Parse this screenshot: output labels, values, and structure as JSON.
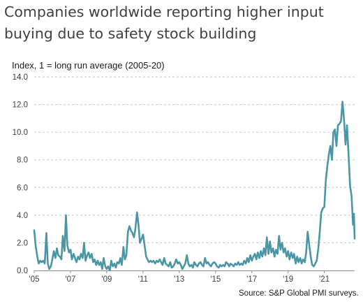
{
  "chart_data": {
    "type": "line",
    "title": "Companies worldwide reporting higher input buying due to safety stock building",
    "ylabel": "Index, 1 = long run average (2005-20)",
    "xlabel": "",
    "source": "Source: S&P Global PMI surveys.",
    "ylim": [
      0,
      14
    ],
    "yticks": [
      "0.0",
      "2.0",
      "4.0",
      "6.0",
      "8.0",
      "10.0",
      "12.0",
      "14.0"
    ],
    "xlim": [
      2005,
      2022.67
    ],
    "xticks": [
      {
        "x": 2005,
        "label": "'05"
      },
      {
        "x": 2007,
        "label": "'07"
      },
      {
        "x": 2009,
        "label": "'09"
      },
      {
        "x": 2011,
        "label": "'11"
      },
      {
        "x": 2013,
        "label": "'13"
      },
      {
        "x": 2015,
        "label": "'15"
      },
      {
        "x": 2017,
        "label": "'17"
      },
      {
        "x": 2019,
        "label": "'19"
      },
      {
        "x": 2021,
        "label": "'21"
      }
    ],
    "grid": true,
    "line_color": "#4a96a6",
    "series": [
      {
        "points": [
          [
            2005.0,
            2.9
          ],
          [
            2005.08,
            1.8
          ],
          [
            2005.17,
            1.0
          ],
          [
            2005.25,
            0.5
          ],
          [
            2005.33,
            0.7
          ],
          [
            2005.42,
            0.6
          ],
          [
            2005.5,
            0.7
          ],
          [
            2005.58,
            0.5
          ],
          [
            2005.67,
            2.7
          ],
          [
            2005.75,
            0.5
          ],
          [
            2005.83,
            0.1
          ],
          [
            2005.92,
            0.3
          ],
          [
            2006.0,
            0.8
          ],
          [
            2006.08,
            1.4
          ],
          [
            2006.17,
            0.9
          ],
          [
            2006.25,
            1.6
          ],
          [
            2006.33,
            1.1
          ],
          [
            2006.42,
            1.0
          ],
          [
            2006.5,
            0.8
          ],
          [
            2006.58,
            2.5
          ],
          [
            2006.67,
            1.4
          ],
          [
            2006.75,
            4.0
          ],
          [
            2006.83,
            1.8
          ],
          [
            2006.92,
            1.3
          ],
          [
            2007.0,
            1.5
          ],
          [
            2007.08,
            0.8
          ],
          [
            2007.17,
            1.2
          ],
          [
            2007.25,
            0.9
          ],
          [
            2007.33,
            0.6
          ],
          [
            2007.42,
            1.0
          ],
          [
            2007.5,
            0.8
          ],
          [
            2007.58,
            1.2
          ],
          [
            2007.67,
            0.9
          ],
          [
            2007.75,
            2.0
          ],
          [
            2007.83,
            0.7
          ],
          [
            2007.92,
            1.1
          ],
          [
            2008.0,
            1.3
          ],
          [
            2008.08,
            0.9
          ],
          [
            2008.17,
            1.2
          ],
          [
            2008.25,
            0.6
          ],
          [
            2008.33,
            0.8
          ],
          [
            2008.42,
            0.4
          ],
          [
            2008.5,
            0.7
          ],
          [
            2008.58,
            0.4
          ],
          [
            2008.67,
            0.6
          ],
          [
            2008.75,
            0.1
          ],
          [
            2008.83,
            0.9
          ],
          [
            2008.92,
            0.3
          ],
          [
            2009.0,
            0.1
          ],
          [
            2009.08,
            0.3
          ],
          [
            2009.17,
            0.0
          ],
          [
            2009.25,
            0.7
          ],
          [
            2009.33,
            0.3
          ],
          [
            2009.42,
            0.5
          ],
          [
            2009.5,
            0.2
          ],
          [
            2009.58,
            0.6
          ],
          [
            2009.67,
            0.5
          ],
          [
            2009.75,
            0.9
          ],
          [
            2009.83,
            0.4
          ],
          [
            2009.92,
            1.7
          ],
          [
            2010.0,
            0.8
          ],
          [
            2010.08,
            1.1
          ],
          [
            2010.17,
            2.8
          ],
          [
            2010.25,
            3.2
          ],
          [
            2010.33,
            2.9
          ],
          [
            2010.42,
            2.7
          ],
          [
            2010.5,
            2.4
          ],
          [
            2010.58,
            3.0
          ],
          [
            2010.67,
            4.2
          ],
          [
            2010.75,
            3.3
          ],
          [
            2010.83,
            2.0
          ],
          [
            2010.92,
            2.3
          ],
          [
            2011.0,
            2.6
          ],
          [
            2011.08,
            1.9
          ],
          [
            2011.17,
            1.0
          ],
          [
            2011.25,
            0.8
          ],
          [
            2011.33,
            0.6
          ],
          [
            2011.42,
            0.7
          ],
          [
            2011.5,
            0.6
          ],
          [
            2011.58,
            0.7
          ],
          [
            2011.67,
            0.5
          ],
          [
            2011.75,
            0.7
          ],
          [
            2011.83,
            0.6
          ],
          [
            2011.92,
            0.8
          ],
          [
            2012.0,
            0.6
          ],
          [
            2012.08,
            0.4
          ],
          [
            2012.17,
            0.9
          ],
          [
            2012.25,
            0.5
          ],
          [
            2012.33,
            0.4
          ],
          [
            2012.42,
            0.3
          ],
          [
            2012.5,
            0.6
          ],
          [
            2012.58,
            0.2
          ],
          [
            2012.67,
            0.3
          ],
          [
            2012.75,
            0.5
          ],
          [
            2012.83,
            0.8
          ],
          [
            2012.92,
            0.5
          ],
          [
            2013.0,
            0.6
          ],
          [
            2013.08,
            0.4
          ],
          [
            2013.17,
            0.1
          ],
          [
            2013.25,
            0.3
          ],
          [
            2013.33,
            0.5
          ],
          [
            2013.42,
            1.1
          ],
          [
            2013.5,
            0.5
          ],
          [
            2013.58,
            0.3
          ],
          [
            2013.67,
            0.4
          ],
          [
            2013.75,
            0.2
          ],
          [
            2013.83,
            0.6
          ],
          [
            2013.92,
            0.4
          ],
          [
            2014.0,
            0.3
          ],
          [
            2014.08,
            0.5
          ],
          [
            2014.17,
            0.6
          ],
          [
            2014.25,
            0.4
          ],
          [
            2014.33,
            0.3
          ],
          [
            2014.42,
            0.9
          ],
          [
            2014.5,
            0.5
          ],
          [
            2014.58,
            0.6
          ],
          [
            2014.67,
            0.4
          ],
          [
            2014.75,
            0.3
          ],
          [
            2014.83,
            0.5
          ],
          [
            2014.92,
            0.6
          ],
          [
            2015.0,
            0.5
          ],
          [
            2015.08,
            0.3
          ],
          [
            2015.17,
            0.2
          ],
          [
            2015.25,
            0.4
          ],
          [
            2015.33,
            0.3
          ],
          [
            2015.42,
            0.4
          ],
          [
            2015.5,
            0.3
          ],
          [
            2015.58,
            0.6
          ],
          [
            2015.67,
            0.5
          ],
          [
            2015.75,
            0.3
          ],
          [
            2015.83,
            0.5
          ],
          [
            2015.92,
            0.4
          ],
          [
            2016.0,
            0.3
          ],
          [
            2016.08,
            0.5
          ],
          [
            2016.17,
            0.4
          ],
          [
            2016.25,
            0.6
          ],
          [
            2016.33,
            0.4
          ],
          [
            2016.42,
            0.5
          ],
          [
            2016.5,
            0.4
          ],
          [
            2016.58,
            0.7
          ],
          [
            2016.67,
            0.5
          ],
          [
            2016.75,
            0.9
          ],
          [
            2016.83,
            0.6
          ],
          [
            2016.92,
            1.1
          ],
          [
            2017.0,
            0.7
          ],
          [
            2017.08,
            1.0
          ],
          [
            2017.17,
            1.2
          ],
          [
            2017.25,
            0.8
          ],
          [
            2017.33,
            1.3
          ],
          [
            2017.42,
            0.9
          ],
          [
            2017.5,
            1.4
          ],
          [
            2017.58,
            1.0
          ],
          [
            2017.67,
            1.6
          ],
          [
            2017.75,
            1.1
          ],
          [
            2017.83,
            2.4
          ],
          [
            2017.92,
            1.2
          ],
          [
            2018.0,
            2.1
          ],
          [
            2018.08,
            1.3
          ],
          [
            2018.17,
            1.6
          ],
          [
            2018.25,
            1.0
          ],
          [
            2018.33,
            1.5
          ],
          [
            2018.42,
            1.2
          ],
          [
            2018.5,
            2.5
          ],
          [
            2018.58,
            1.5
          ],
          [
            2018.67,
            2.0
          ],
          [
            2018.75,
            1.3
          ],
          [
            2018.83,
            1.6
          ],
          [
            2018.92,
            1.0
          ],
          [
            2019.0,
            1.4
          ],
          [
            2019.08,
            0.8
          ],
          [
            2019.17,
            1.3
          ],
          [
            2019.25,
            0.9
          ],
          [
            2019.33,
            1.2
          ],
          [
            2019.42,
            0.5
          ],
          [
            2019.5,
            1.0
          ],
          [
            2019.58,
            0.6
          ],
          [
            2019.67,
            0.9
          ],
          [
            2019.75,
            0.5
          ],
          [
            2019.83,
            0.8
          ],
          [
            2019.92,
            0.6
          ],
          [
            2020.0,
            1.3
          ],
          [
            2020.08,
            2.8
          ],
          [
            2020.17,
            1.8
          ],
          [
            2020.25,
            1.0
          ],
          [
            2020.33,
            0.4
          ],
          [
            2020.42,
            0.3
          ],
          [
            2020.5,
            0.5
          ],
          [
            2020.58,
            0.7
          ],
          [
            2020.67,
            1.6
          ],
          [
            2020.75,
            2.8
          ],
          [
            2020.83,
            4.2
          ],
          [
            2020.92,
            4.5
          ],
          [
            2021.0,
            4.6
          ],
          [
            2021.08,
            6.5
          ],
          [
            2021.17,
            7.6
          ],
          [
            2021.25,
            8.4
          ],
          [
            2021.33,
            9.0
          ],
          [
            2021.42,
            8.0
          ],
          [
            2021.5,
            10.0
          ],
          [
            2021.58,
            10.2
          ],
          [
            2021.67,
            9.0
          ],
          [
            2021.75,
            10.5
          ],
          [
            2021.83,
            10.6
          ],
          [
            2021.92,
            10.8
          ],
          [
            2022.0,
            12.2
          ],
          [
            2022.08,
            11.0
          ],
          [
            2022.17,
            9.1
          ],
          [
            2022.25,
            10.5
          ],
          [
            2022.33,
            8.5
          ],
          [
            2022.42,
            6.1
          ],
          [
            2022.5,
            5.4
          ],
          [
            2022.58,
            3.3
          ],
          [
            2022.63,
            4.1
          ],
          [
            2022.67,
            2.3
          ]
        ]
      }
    ]
  }
}
